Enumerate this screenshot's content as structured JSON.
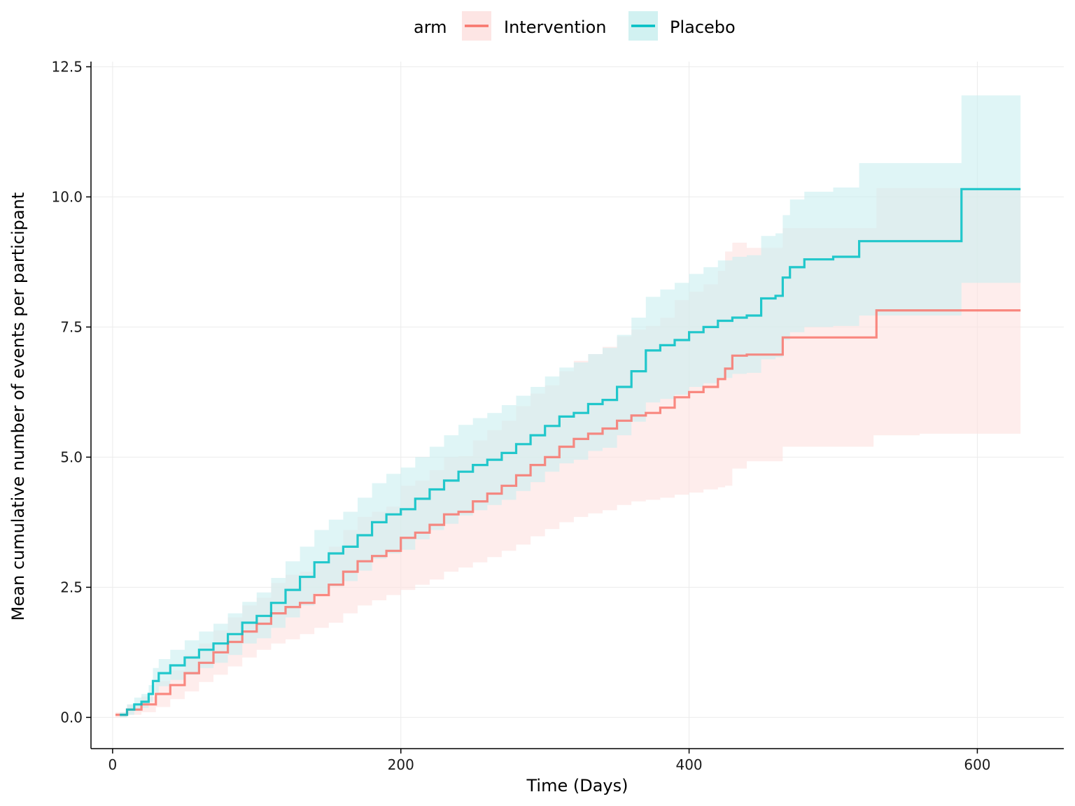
{
  "chart_data": {
    "type": "line",
    "title": "",
    "xlabel": "Time (Days)",
    "ylabel": "Mean cumulative number of events per participant",
    "xlim": [
      -15,
      660
    ],
    "ylim": [
      -0.6,
      12.6
    ],
    "x_ticks": [
      0,
      200,
      400,
      600
    ],
    "x_tick_labels": [
      "0",
      "200",
      "400",
      "600"
    ],
    "y_ticks": [
      0,
      2.5,
      5,
      7.5,
      10,
      12.5
    ],
    "y_tick_labels": [
      "0.0",
      "2.5",
      "5.0",
      "7.5",
      "10.0",
      "12.5"
    ],
    "grid": true,
    "legend": {
      "position": "top",
      "title": "arm",
      "entries": [
        "Intervention",
        "Placebo"
      ]
    },
    "series": [
      {
        "name": "Intervention",
        "color": "#F8766D",
        "fill": "#FDE2E1",
        "x": [
          2,
          10,
          20,
          30,
          40,
          50,
          60,
          70,
          80,
          90,
          100,
          110,
          120,
          130,
          140,
          150,
          160,
          170,
          180,
          190,
          200,
          210,
          220,
          230,
          240,
          250,
          260,
          270,
          280,
          290,
          300,
          310,
          320,
          330,
          340,
          350,
          360,
          370,
          380,
          390,
          400,
          410,
          420,
          425,
          430,
          440,
          450,
          460,
          465,
          470,
          480,
          500,
          520,
          528,
          530,
          560,
          590,
          630
        ],
        "values": [
          0.05,
          0.15,
          0.25,
          0.45,
          0.62,
          0.85,
          1.05,
          1.25,
          1.45,
          1.65,
          1.8,
          2.0,
          2.12,
          2.2,
          2.35,
          2.55,
          2.8,
          3.0,
          3.1,
          3.2,
          3.45,
          3.55,
          3.7,
          3.9,
          3.95,
          4.15,
          4.3,
          4.45,
          4.65,
          4.85,
          5.0,
          5.2,
          5.35,
          5.45,
          5.55,
          5.7,
          5.8,
          5.85,
          5.95,
          6.15,
          6.25,
          6.35,
          6.5,
          6.7,
          6.95,
          6.97,
          6.97,
          6.97,
          7.3,
          7.3,
          7.3,
          7.3,
          7.3,
          7.3,
          7.82,
          7.82,
          7.82,
          7.82
        ],
        "lower": [
          0.0,
          0.05,
          0.1,
          0.2,
          0.35,
          0.5,
          0.68,
          0.82,
          0.98,
          1.15,
          1.3,
          1.42,
          1.5,
          1.6,
          1.72,
          1.82,
          2.0,
          2.15,
          2.25,
          2.35,
          2.45,
          2.55,
          2.65,
          2.8,
          2.88,
          2.98,
          3.08,
          3.2,
          3.32,
          3.48,
          3.62,
          3.75,
          3.85,
          3.92,
          3.98,
          4.08,
          4.15,
          4.18,
          4.22,
          4.28,
          4.32,
          4.38,
          4.42,
          4.45,
          4.78,
          4.92,
          4.92,
          4.92,
          5.2,
          5.2,
          5.2,
          5.2,
          5.2,
          5.42,
          5.42,
          5.45,
          5.45,
          5.45
        ],
        "upper": [
          0.1,
          0.25,
          0.4,
          0.7,
          0.9,
          1.2,
          1.42,
          1.67,
          1.92,
          2.15,
          2.3,
          2.58,
          2.74,
          2.8,
          2.98,
          3.28,
          3.6,
          3.85,
          3.95,
          4.05,
          4.45,
          4.55,
          4.75,
          5.0,
          5.02,
          5.32,
          5.52,
          5.7,
          5.98,
          6.22,
          6.38,
          6.65,
          6.85,
          6.98,
          7.12,
          7.32,
          7.45,
          7.52,
          7.68,
          8.02,
          8.18,
          8.32,
          8.58,
          8.95,
          9.12,
          9.02,
          9.02,
          9.02,
          9.4,
          9.4,
          9.4,
          9.4,
          9.4,
          9.4,
          10.17,
          10.17,
          10.17,
          10.17
        ]
      },
      {
        "name": "Placebo",
        "color": "#00BFC4",
        "fill": "#CCEFF0",
        "x": [
          5,
          10,
          15,
          20,
          25,
          28,
          32,
          40,
          50,
          60,
          70,
          80,
          90,
          100,
          110,
          120,
          130,
          140,
          150,
          160,
          170,
          180,
          190,
          200,
          210,
          220,
          230,
          240,
          250,
          260,
          270,
          280,
          290,
          300,
          310,
          320,
          330,
          340,
          350,
          360,
          370,
          380,
          390,
          400,
          410,
          420,
          430,
          440,
          450,
          460,
          465,
          470,
          480,
          500,
          518,
          540,
          560,
          589,
          630
        ],
        "values": [
          0.05,
          0.15,
          0.25,
          0.3,
          0.45,
          0.7,
          0.85,
          1.0,
          1.15,
          1.3,
          1.42,
          1.6,
          1.82,
          1.95,
          2.2,
          2.45,
          2.7,
          2.98,
          3.15,
          3.28,
          3.5,
          3.75,
          3.9,
          4.0,
          4.2,
          4.38,
          4.55,
          4.72,
          4.85,
          4.95,
          5.08,
          5.25,
          5.42,
          5.6,
          5.78,
          5.85,
          6.02,
          6.1,
          6.35,
          6.65,
          7.05,
          7.15,
          7.25,
          7.4,
          7.5,
          7.62,
          7.68,
          7.72,
          8.05,
          8.1,
          8.45,
          8.65,
          8.8,
          8.85,
          9.15,
          9.15,
          9.15,
          10.15,
          10.15
        ],
        "lower": [
          0.0,
          0.05,
          0.12,
          0.18,
          0.3,
          0.48,
          0.6,
          0.72,
          0.82,
          0.95,
          1.05,
          1.2,
          1.42,
          1.52,
          1.72,
          1.92,
          2.15,
          2.38,
          2.52,
          2.62,
          2.82,
          3.05,
          3.15,
          3.22,
          3.42,
          3.6,
          3.72,
          3.88,
          3.98,
          4.08,
          4.18,
          4.35,
          4.52,
          4.72,
          4.88,
          4.95,
          5.12,
          5.18,
          5.42,
          5.68,
          6.05,
          6.12,
          6.2,
          6.35,
          6.42,
          6.52,
          6.6,
          6.62,
          6.88,
          6.92,
          7.25,
          7.4,
          7.5,
          7.52,
          7.72,
          7.72,
          7.72,
          8.35,
          8.35
        ],
        "upper": [
          0.1,
          0.25,
          0.38,
          0.45,
          0.62,
          0.95,
          1.12,
          1.3,
          1.48,
          1.65,
          1.8,
          2.0,
          2.22,
          2.4,
          2.68,
          3.0,
          3.28,
          3.6,
          3.8,
          3.95,
          4.22,
          4.5,
          4.68,
          4.8,
          5.0,
          5.2,
          5.42,
          5.62,
          5.75,
          5.85,
          6.0,
          6.18,
          6.35,
          6.55,
          6.72,
          6.82,
          6.98,
          7.1,
          7.35,
          7.68,
          8.08,
          8.22,
          8.35,
          8.52,
          8.65,
          8.78,
          8.85,
          8.88,
          9.25,
          9.3,
          9.65,
          9.95,
          10.1,
          10.18,
          10.65,
          10.65,
          10.65,
          11.95,
          11.95
        ]
      }
    ]
  }
}
